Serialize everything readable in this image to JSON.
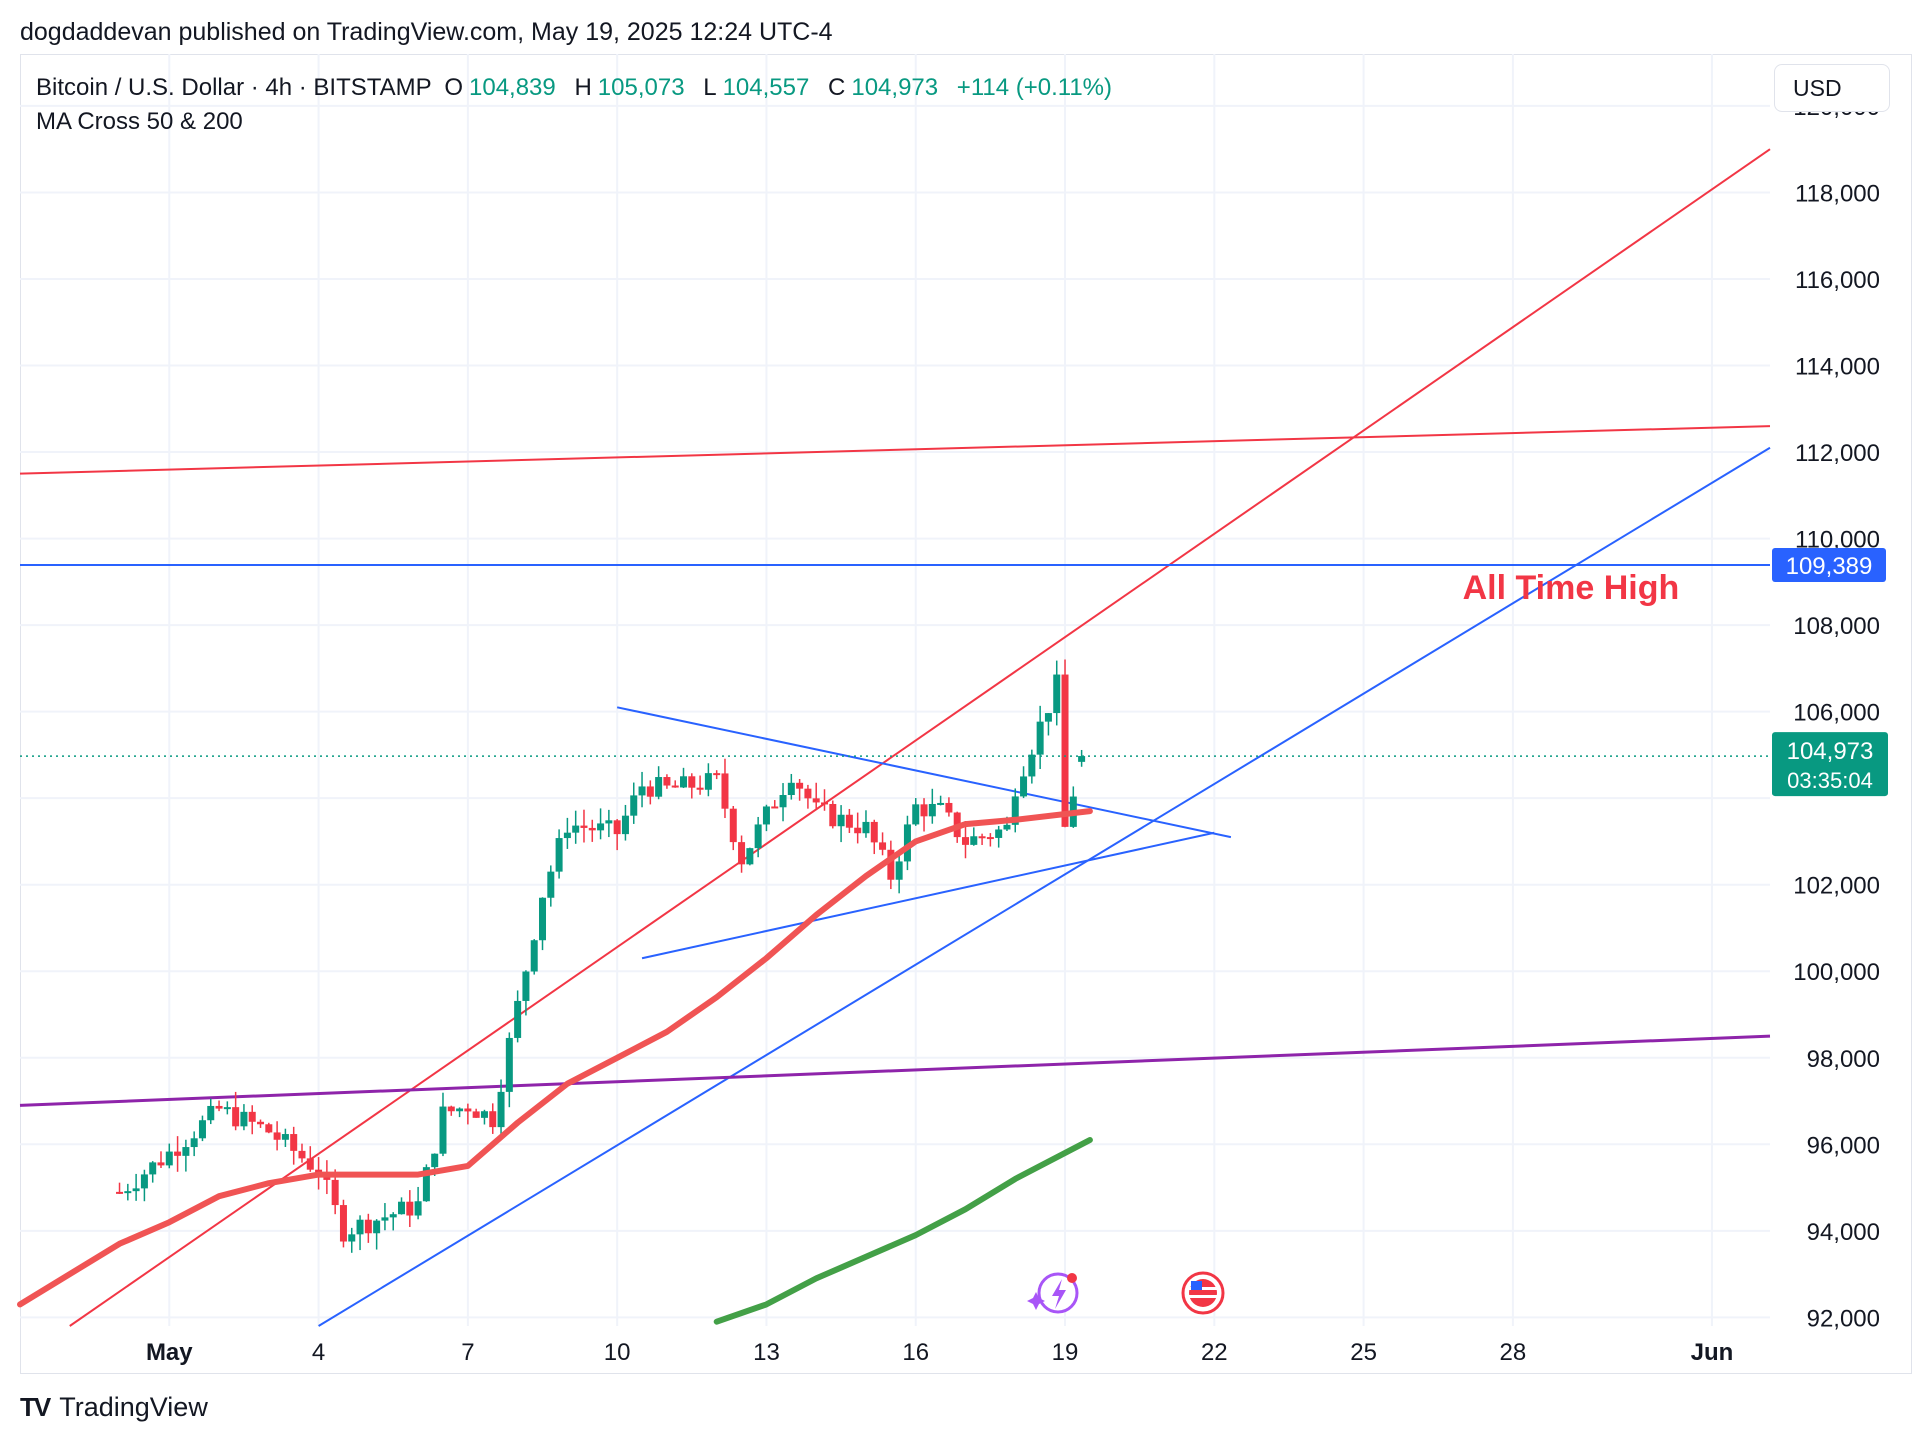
{
  "header": {
    "publisher": "dogdaddevan published on TradingView.com, May 19, 2025 12:24 UTC-4"
  },
  "legend": {
    "symbol": "Bitcoin / U.S. Dollar · 4h · BITSTAMP",
    "o_label": "O",
    "o_value": "104,839",
    "h_label": "H",
    "h_value": "105,073",
    "l_label": "L",
    "l_value": "104,557",
    "c_label": "C",
    "c_value": "104,973",
    "change": "+114 (+0.11%)",
    "indicator": "MA Cross 50 & 200"
  },
  "currency_button": "USD",
  "footer": {
    "logo": "TV",
    "brand": "TradingView"
  },
  "colors": {
    "up": "#089981",
    "down": "#f23645",
    "ma50": "#f05454",
    "ma200": "#43a047",
    "red_line": "#f23645",
    "blue_line": "#2962ff",
    "purple_line": "#8e24aa",
    "ath_badge": "#2962ff",
    "price_badge": "#089981",
    "grid": "#f0f3fa"
  },
  "chart_data": {
    "type": "candlestick",
    "timeframe": "4h",
    "ylim": [
      91800,
      121200
    ],
    "xlim": [
      "2025-04-28T00:00",
      "2025-06-02T04:00"
    ],
    "y_ticks": [
      92000,
      94000,
      96000,
      98000,
      100000,
      102000,
      104000,
      106000,
      108000,
      110000,
      112000,
      114000,
      116000,
      118000,
      120000
    ],
    "y_tick_labels": [
      "92,000",
      "94,000",
      "96,000",
      "98,000",
      "100,000",
      "102,000",
      "",
      "106,000",
      "108,000",
      "110,000",
      "112,000",
      "114,000",
      "116,000",
      "118,000",
      "120,000"
    ],
    "x_ticks": [
      {
        "label": "May",
        "date": "2025-05-01"
      },
      {
        "label": "4",
        "date": "2025-05-04"
      },
      {
        "label": "7",
        "date": "2025-05-07"
      },
      {
        "label": "10",
        "date": "2025-05-10"
      },
      {
        "label": "13",
        "date": "2025-05-13"
      },
      {
        "label": "16",
        "date": "2025-05-16"
      },
      {
        "label": "19",
        "date": "2025-05-19"
      },
      {
        "label": "22",
        "date": "2025-05-22"
      },
      {
        "label": "25",
        "date": "2025-05-25"
      },
      {
        "label": "28",
        "date": "2025-05-28"
      },
      {
        "label": "Jun",
        "date": "2025-06-01"
      }
    ],
    "anchors": [
      {
        "date": "2025-04-30",
        "price": 94900
      },
      {
        "date": "2025-05-01",
        "price": 95800
      },
      {
        "date": "2025-05-02",
        "price": 96800
      },
      {
        "date": "2025-05-03",
        "price": 96300
      },
      {
        "date": "2025-05-04",
        "price": 95400
      },
      {
        "date": "2025-05-04T12:00",
        "price": 94000
      },
      {
        "date": "2025-05-05",
        "price": 94200
      },
      {
        "date": "2025-05-06",
        "price": 94600
      },
      {
        "date": "2025-05-06T12:00",
        "price": 96700
      },
      {
        "date": "2025-05-07",
        "price": 96900
      },
      {
        "date": "2025-05-07T12:00",
        "price": 96600
      },
      {
        "date": "2025-05-08",
        "price": 99200
      },
      {
        "date": "2025-05-08T12:00",
        "price": 101800
      },
      {
        "date": "2025-05-09",
        "price": 103400
      },
      {
        "date": "2025-05-10",
        "price": 103200
      },
      {
        "date": "2025-05-10T12:00",
        "price": 104300
      },
      {
        "date": "2025-05-11",
        "price": 104200
      },
      {
        "date": "2025-05-12",
        "price": 104400
      },
      {
        "date": "2025-05-12T12:00",
        "price": 102600
      },
      {
        "date": "2025-05-13",
        "price": 103600
      },
      {
        "date": "2025-05-13T12:00",
        "price": 104600
      },
      {
        "date": "2025-05-14",
        "price": 103700
      },
      {
        "date": "2025-05-15",
        "price": 103300
      },
      {
        "date": "2025-05-15T12:00",
        "price": 102200
      },
      {
        "date": "2025-05-16",
        "price": 103800
      },
      {
        "date": "2025-05-16T12:00",
        "price": 103700
      },
      {
        "date": "2025-05-17",
        "price": 103000
      },
      {
        "date": "2025-05-17T20:00",
        "price": 103300
      },
      {
        "date": "2025-05-18",
        "price": 104300
      },
      {
        "date": "2025-05-18T20:00",
        "price": 106600
      },
      {
        "date": "2025-05-19",
        "price": 103300
      },
      {
        "date": "2025-05-19T08:00",
        "price": 104973
      }
    ],
    "ma50": [
      {
        "date": "2025-04-28",
        "price": 92300
      },
      {
        "date": "2025-04-30",
        "price": 93700
      },
      {
        "date": "2025-05-01",
        "price": 94200
      },
      {
        "date": "2025-05-02",
        "price": 94800
      },
      {
        "date": "2025-05-03",
        "price": 95100
      },
      {
        "date": "2025-05-04",
        "price": 95300
      },
      {
        "date": "2025-05-06",
        "price": 95300
      },
      {
        "date": "2025-05-07",
        "price": 95500
      },
      {
        "date": "2025-05-08",
        "price": 96500
      },
      {
        "date": "2025-05-09",
        "price": 97400
      },
      {
        "date": "2025-05-10",
        "price": 98000
      },
      {
        "date": "2025-05-11",
        "price": 98600
      },
      {
        "date": "2025-05-12",
        "price": 99400
      },
      {
        "date": "2025-05-13",
        "price": 100300
      },
      {
        "date": "2025-05-14",
        "price": 101300
      },
      {
        "date": "2025-05-15",
        "price": 102200
      },
      {
        "date": "2025-05-16",
        "price": 103000
      },
      {
        "date": "2025-05-17",
        "price": 103400
      },
      {
        "date": "2025-05-18",
        "price": 103500
      },
      {
        "date": "2025-05-19T12:00",
        "price": 103700
      }
    ],
    "ma200": [
      {
        "date": "2025-05-12",
        "price": 91900
      },
      {
        "date": "2025-05-13",
        "price": 92300
      },
      {
        "date": "2025-05-14",
        "price": 92900
      },
      {
        "date": "2025-05-15",
        "price": 93400
      },
      {
        "date": "2025-05-16",
        "price": 93900
      },
      {
        "date": "2025-05-17",
        "price": 94500
      },
      {
        "date": "2025-05-18",
        "price": 95200
      },
      {
        "date": "2025-05-19T12:00",
        "price": 96100
      }
    ],
    "trendlines": [
      {
        "name": "red-rising-channel",
        "color": "#f23645",
        "from": {
          "date": "2025-04-29",
          "price": 91800
        },
        "to": {
          "date": "2025-06-02T04:00",
          "price": 119000
        }
      },
      {
        "name": "red-horizontal-resistance",
        "color": "#f23645",
        "from": {
          "date": "2025-04-28",
          "price": 111500
        },
        "to": {
          "date": "2025-06-02T04:00",
          "price": 112600
        }
      },
      {
        "name": "blue-rising-support",
        "color": "#2962ff",
        "from": {
          "date": "2025-05-04",
          "price": 91800
        },
        "to": {
          "date": "2025-06-02T04:00",
          "price": 112100
        }
      },
      {
        "name": "blue-triangle-upper",
        "color": "#2962ff",
        "from": {
          "date": "2025-05-10",
          "price": 106100
        },
        "to": {
          "date": "2025-05-22T08:00",
          "price": 103100
        }
      },
      {
        "name": "blue-triangle-lower",
        "color": "#2962ff",
        "from": {
          "date": "2025-05-10T12:00",
          "price": 100300
        },
        "to": {
          "date": "2025-05-22",
          "price": 103200
        }
      },
      {
        "name": "purple-support",
        "color": "#8e24aa",
        "from": {
          "date": "2025-04-28",
          "price": 96900
        },
        "to": {
          "date": "2025-06-02T04:00",
          "price": 98500
        }
      }
    ],
    "horizontal_lines": [
      {
        "name": "all-time-high",
        "price": 109389,
        "label": "109,389",
        "color": "#2962ff"
      }
    ],
    "annotation": {
      "text": "All Time High",
      "color": "#f23645",
      "date": "2025-05-29T04:00",
      "price": 108600
    },
    "last_price": {
      "price": 104973,
      "label": "104,973",
      "countdown": "03:35:04"
    }
  }
}
